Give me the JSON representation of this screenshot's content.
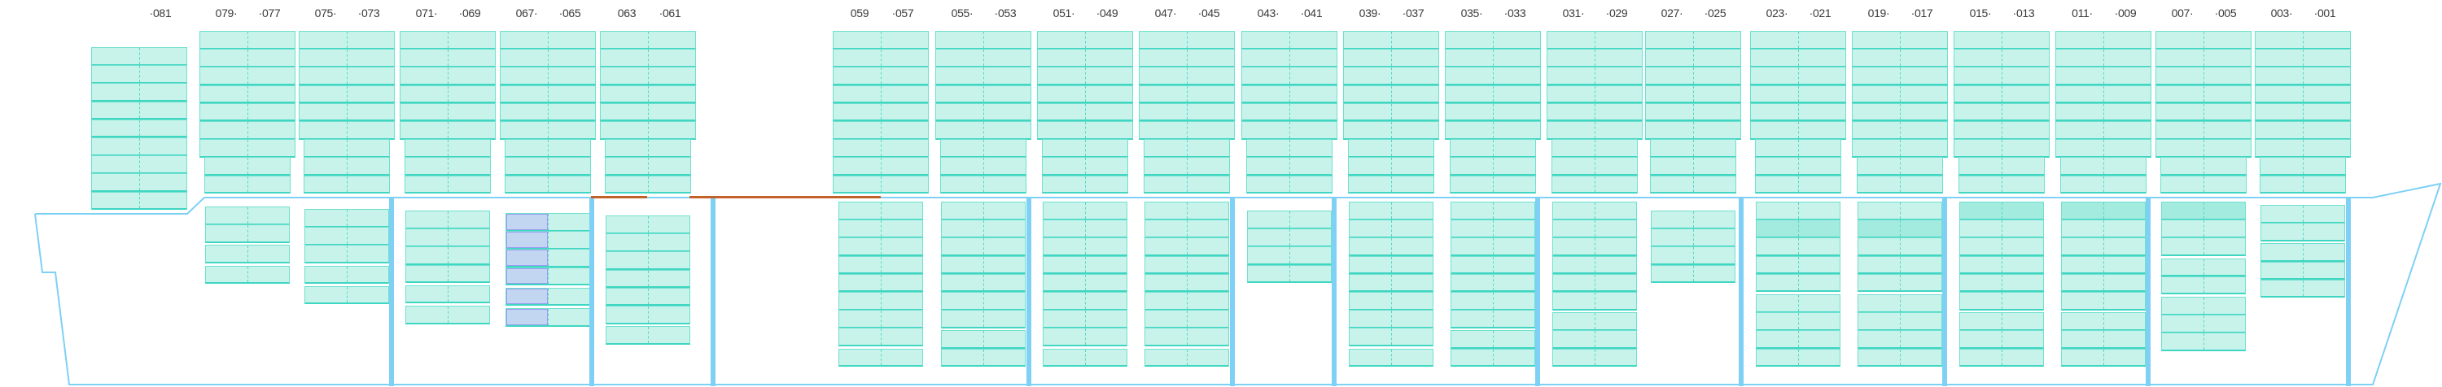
{
  "view": "bay-plan-profile",
  "colors": {
    "slot_fill": "#c8f3eb",
    "slot_border": "#3fd6c2",
    "slot_highlight": "#a3eadf",
    "selected_fill": "#c3d6f1",
    "selected_border": "#9a9cf0",
    "hull": "#7fd0f5",
    "hatch_marker": "#c2622b"
  },
  "bays": [
    {
      "labels": [
        "·081"
      ],
      "deck": {
        "wide": 9,
        "narrow": 0
      },
      "hold": []
    },
    {
      "labels": [
        "079·",
        "·077"
      ],
      "deck": {
        "wide": 7,
        "narrow": 2
      },
      "hold": [
        2,
        1,
        1
      ]
    },
    {
      "labels": [
        "075·",
        "·073"
      ],
      "deck": {
        "wide": 6,
        "narrow": 3
      },
      "hold": [
        3,
        1,
        1
      ]
    },
    {
      "labels": [
        "071·",
        "·069"
      ],
      "deck": {
        "wide": 6,
        "narrow": 3
      },
      "hold": [
        4,
        1,
        1
      ]
    },
    {
      "labels": [
        "067·",
        "·065"
      ],
      "deck": {
        "wide": 6,
        "narrow": 3
      },
      "hold": [
        4,
        1,
        1
      ],
      "selected_hold_side": "left"
    },
    {
      "labels": [
        "063",
        "·061"
      ],
      "deck": {
        "wide": 6,
        "narrow": 3
      },
      "hold": [
        6,
        1
      ]
    },
    {
      "labels": [
        "059",
        "·057"
      ],
      "deck": {
        "wide": 9,
        "narrow": 0
      },
      "hold": [
        8,
        1
      ]
    },
    {
      "labels": [
        "055·",
        "·053"
      ],
      "deck": {
        "wide": 6,
        "narrow": 3
      },
      "hold": [
        7,
        2
      ]
    },
    {
      "labels": [
        "051·",
        "·049"
      ],
      "deck": {
        "wide": 6,
        "narrow": 3
      },
      "hold": [
        8,
        1
      ]
    },
    {
      "labels": [
        "047·",
        "·045"
      ],
      "deck": {
        "wide": 6,
        "narrow": 3
      },
      "hold": [
        8,
        1
      ]
    },
    {
      "labels": [
        "043·",
        "·041"
      ],
      "deck": {
        "wide": 6,
        "narrow": 3
      },
      "hold": [
        4
      ]
    },
    {
      "labels": [
        "039·",
        "·037"
      ],
      "deck": {
        "wide": 6,
        "narrow": 3
      },
      "hold": [
        8,
        1
      ]
    },
    {
      "labels": [
        "035·",
        "·033"
      ],
      "deck": {
        "wide": 6,
        "narrow": 3
      },
      "hold": [
        7,
        2
      ]
    },
    {
      "labels": [
        "031·",
        "·029"
      ],
      "deck": {
        "wide": 6,
        "narrow": 3
      },
      "hold": [
        6,
        3
      ]
    },
    {
      "labels": [
        "027·",
        "·025"
      ],
      "deck": {
        "wide": 6,
        "narrow": 3
      },
      "hold": [
        4
      ]
    },
    {
      "labels": [
        "023·",
        "·021"
      ],
      "deck": {
        "wide": 6,
        "narrow": 3
      },
      "hold": [
        5,
        4
      ],
      "highlight_tier": 1
    },
    {
      "labels": [
        "019·",
        "·017"
      ],
      "deck": {
        "wide": 7,
        "narrow": 2
      },
      "hold": [
        5,
        4
      ],
      "highlight_tier": 1
    },
    {
      "labels": [
        "015·",
        "·013"
      ],
      "deck": {
        "wide": 7,
        "narrow": 2
      },
      "hold": [
        6,
        3
      ],
      "highlight_tier": 0
    },
    {
      "labels": [
        "011·",
        "·009"
      ],
      "deck": {
        "wide": 7,
        "narrow": 2
      },
      "hold": [
        6,
        3
      ],
      "highlight_tier": 0
    },
    {
      "labels": [
        "007·",
        "·005"
      ],
      "deck": {
        "wide": 7,
        "narrow": 2
      },
      "hold": [
        3,
        2,
        3
      ],
      "highlight_tier": 0
    },
    {
      "labels": [
        "003·",
        "·001"
      ],
      "deck": {
        "wide": 7,
        "narrow": 2
      },
      "hold": [
        2,
        3
      ]
    }
  ]
}
